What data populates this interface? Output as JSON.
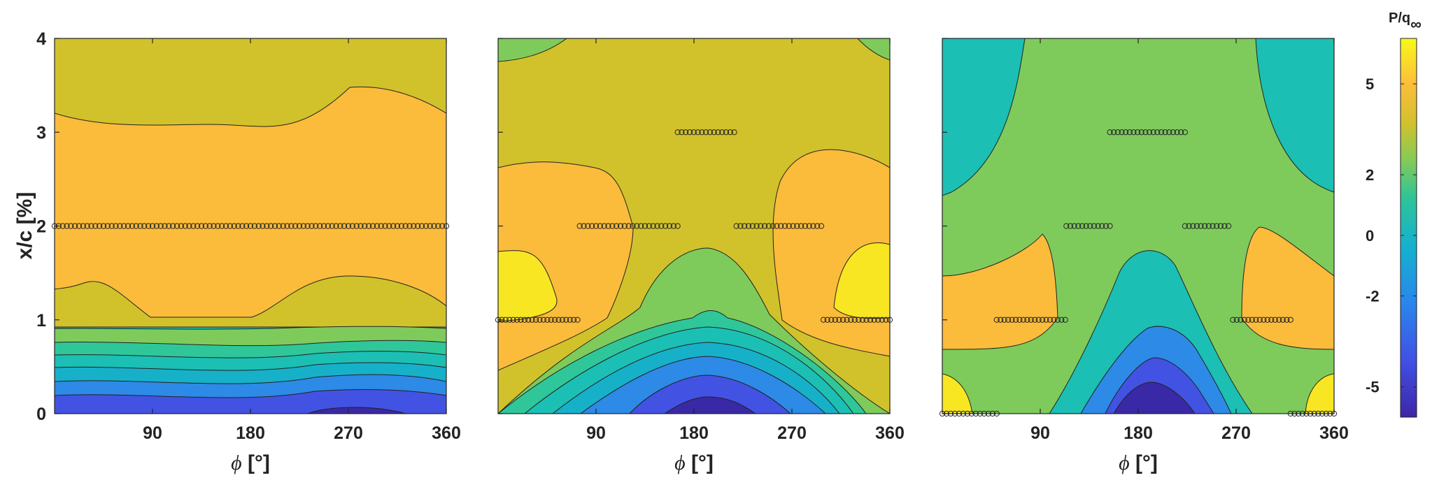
{
  "chart_data": [
    {
      "type": "contour",
      "panel": 1,
      "xlabel": "ϕ [°]",
      "ylabel": "x/c [%]",
      "xlim": [
        0,
        360
      ],
      "ylim": [
        0,
        4
      ],
      "xticks": [
        90,
        180,
        270,
        360
      ],
      "yticks": [
        0,
        1,
        2,
        3,
        4
      ],
      "sensor_rows": [
        {
          "y": 2.0,
          "x_from": 0,
          "x_to": 360,
          "count": 97
        }
      ]
    },
    {
      "type": "contour",
      "panel": 2,
      "xlabel": "ϕ [°]",
      "xlim": [
        0,
        360
      ],
      "ylim": [
        0,
        4
      ],
      "xticks": [
        90,
        180,
        270,
        360
      ],
      "sensor_rows": [
        {
          "y": 3.0,
          "x_from": 165,
          "x_to": 217,
          "count": 15
        },
        {
          "y": 2.0,
          "x_from": 75,
          "x_to": 165,
          "count": 25
        },
        {
          "y": 2.0,
          "x_from": 219,
          "x_to": 297,
          "count": 22
        },
        {
          "y": 1.0,
          "x_from": 0,
          "x_to": 73,
          "count": 22
        },
        {
          "y": 1.0,
          "x_from": 299,
          "x_to": 360,
          "count": 18
        }
      ]
    },
    {
      "type": "contour",
      "panel": 3,
      "xlabel": "ϕ [°]",
      "xlim": [
        0,
        360
      ],
      "ylim": [
        0,
        4
      ],
      "xticks": [
        90,
        180,
        270,
        360
      ],
      "sensor_rows": [
        {
          "y": 3.0,
          "x_from": 154,
          "x_to": 223,
          "count": 20
        },
        {
          "y": 2.0,
          "x_from": 114,
          "x_to": 154,
          "count": 12
        },
        {
          "y": 2.0,
          "x_from": 223,
          "x_to": 263,
          "count": 12
        },
        {
          "y": 1.0,
          "x_from": 50,
          "x_to": 113,
          "count": 19
        },
        {
          "y": 1.0,
          "x_from": 267,
          "x_to": 320,
          "count": 16
        },
        {
          "y": 0.0,
          "x_from": 0,
          "x_to": 50,
          "count": 14
        },
        {
          "y": 0.0,
          "x_from": 320,
          "x_to": 360,
          "count": 12
        }
      ]
    }
  ],
  "colorbar": {
    "title": "P/q∞",
    "range": [
      -6,
      6.5
    ],
    "tick_values": [
      5,
      2,
      0,
      -2,
      -5
    ],
    "tick_labels": [
      "5",
      "2",
      "0",
      "-2",
      "-5"
    ]
  },
  "colors": {
    "dark_blue": "#3a29a6",
    "blue": "#4253e3",
    "mid_blue": "#2d8ae6",
    "cyan": "#17b0c9",
    "teal": "#1cbfb3",
    "green_teal": "#2fc79a",
    "green": "#7ecb5c",
    "olive": "#d1c22b",
    "orange": "#fbbb3b",
    "yellow": "#f8e622"
  }
}
